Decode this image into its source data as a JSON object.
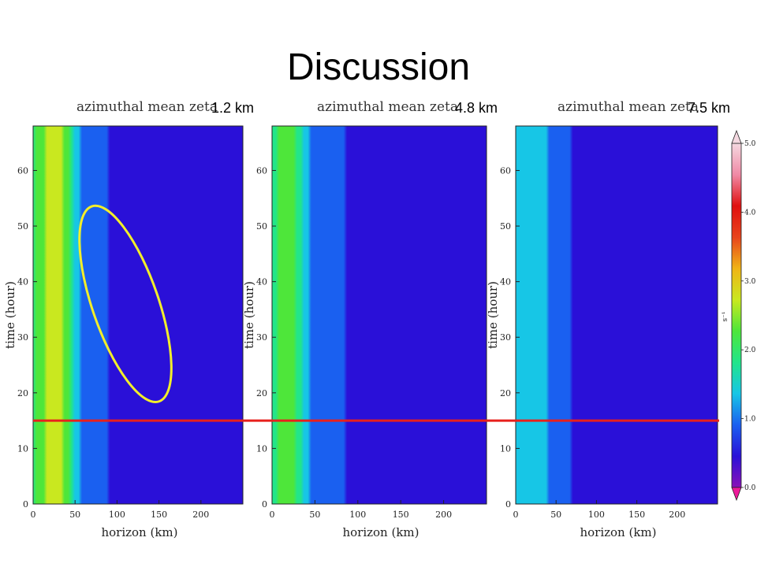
{
  "slide": {
    "title": "Discussion"
  },
  "colors": {
    "marker_line": "#e8201c",
    "ellipse": "#f2ee2a",
    "scale": [
      "#8a10b8",
      "#2a10d8",
      "#1a60f0",
      "#17c6e6",
      "#22e58a",
      "#4ee63a",
      "#c9e81f",
      "#f0b416",
      "#e8441c",
      "#e01010",
      "#f08aa6",
      "#f4d8e0"
    ]
  },
  "chart_data": [
    {
      "type": "heatmap",
      "title": "azimuthal mean zeta",
      "height_label": "1.2 km",
      "xlabel": "horizon (km)",
      "ylabel": "time (hour)",
      "xlim": [
        0,
        250
      ],
      "ylim": [
        0,
        68
      ],
      "x_ticks": [
        0,
        50,
        100,
        150,
        200
      ],
      "y_ticks": [
        0,
        10,
        20,
        30,
        40,
        50,
        60
      ],
      "profile": {
        "r": [
          0,
          10,
          20,
          30,
          40,
          50,
          60,
          80,
          100,
          150,
          200,
          250
        ],
        "zeta": [
          2.0,
          2.3,
          2.6,
          2.8,
          2.3,
          1.3,
          1.0,
          0.75,
          0.6,
          0.5,
          0.45,
          0.45
        ]
      },
      "annotation": {
        "shape": "ellipse",
        "center": [
          110,
          36
        ],
        "description": ""
      }
    },
    {
      "type": "heatmap",
      "title": "azimuthal mean zeta",
      "height_label": "4.8 km",
      "xlabel": "horizon (km)",
      "ylabel": "time (hour)",
      "xlim": [
        0,
        250
      ],
      "ylim": [
        0,
        68
      ],
      "x_ticks": [
        0,
        50,
        100,
        150,
        200
      ],
      "y_ticks": [
        0,
        10,
        20,
        30,
        40,
        50,
        60
      ],
      "profile": {
        "r": [
          0,
          10,
          20,
          30,
          40,
          50,
          60,
          80,
          100,
          150,
          200,
          250
        ],
        "zeta": [
          1.8,
          2.1,
          2.2,
          1.9,
          1.3,
          1.0,
          0.85,
          0.7,
          0.6,
          0.5,
          0.45,
          0.45
        ]
      }
    },
    {
      "type": "heatmap",
      "title": "azimuthal mean zeta",
      "height_label": "7.5 km",
      "xlabel": "horizon (km)",
      "ylabel": "time (hour)",
      "xlim": [
        0,
        250
      ],
      "ylim": [
        0,
        68
      ],
      "x_ticks": [
        0,
        50,
        100,
        150,
        200
      ],
      "y_ticks": [
        0,
        10,
        20,
        30,
        40,
        50,
        60
      ],
      "profile": {
        "r": [
          0,
          10,
          20,
          30,
          40,
          50,
          60,
          80,
          100,
          150,
          200,
          250
        ],
        "zeta": [
          1.3,
          1.5,
          1.6,
          1.4,
          1.1,
          0.9,
          0.75,
          0.6,
          0.5,
          0.45,
          0.42,
          0.42
        ]
      }
    }
  ],
  "colorbar": {
    "ticks": [
      "5.0",
      "4.0",
      "3.0",
      "2.0",
      "1.0",
      "0.0"
    ],
    "values": [
      5.0,
      4.0,
      3.0,
      2.0,
      1.0,
      0.0
    ],
    "unit": "s⁻¹",
    "range": [
      0,
      5
    ]
  },
  "marker_line": {
    "time_hour": 15
  }
}
